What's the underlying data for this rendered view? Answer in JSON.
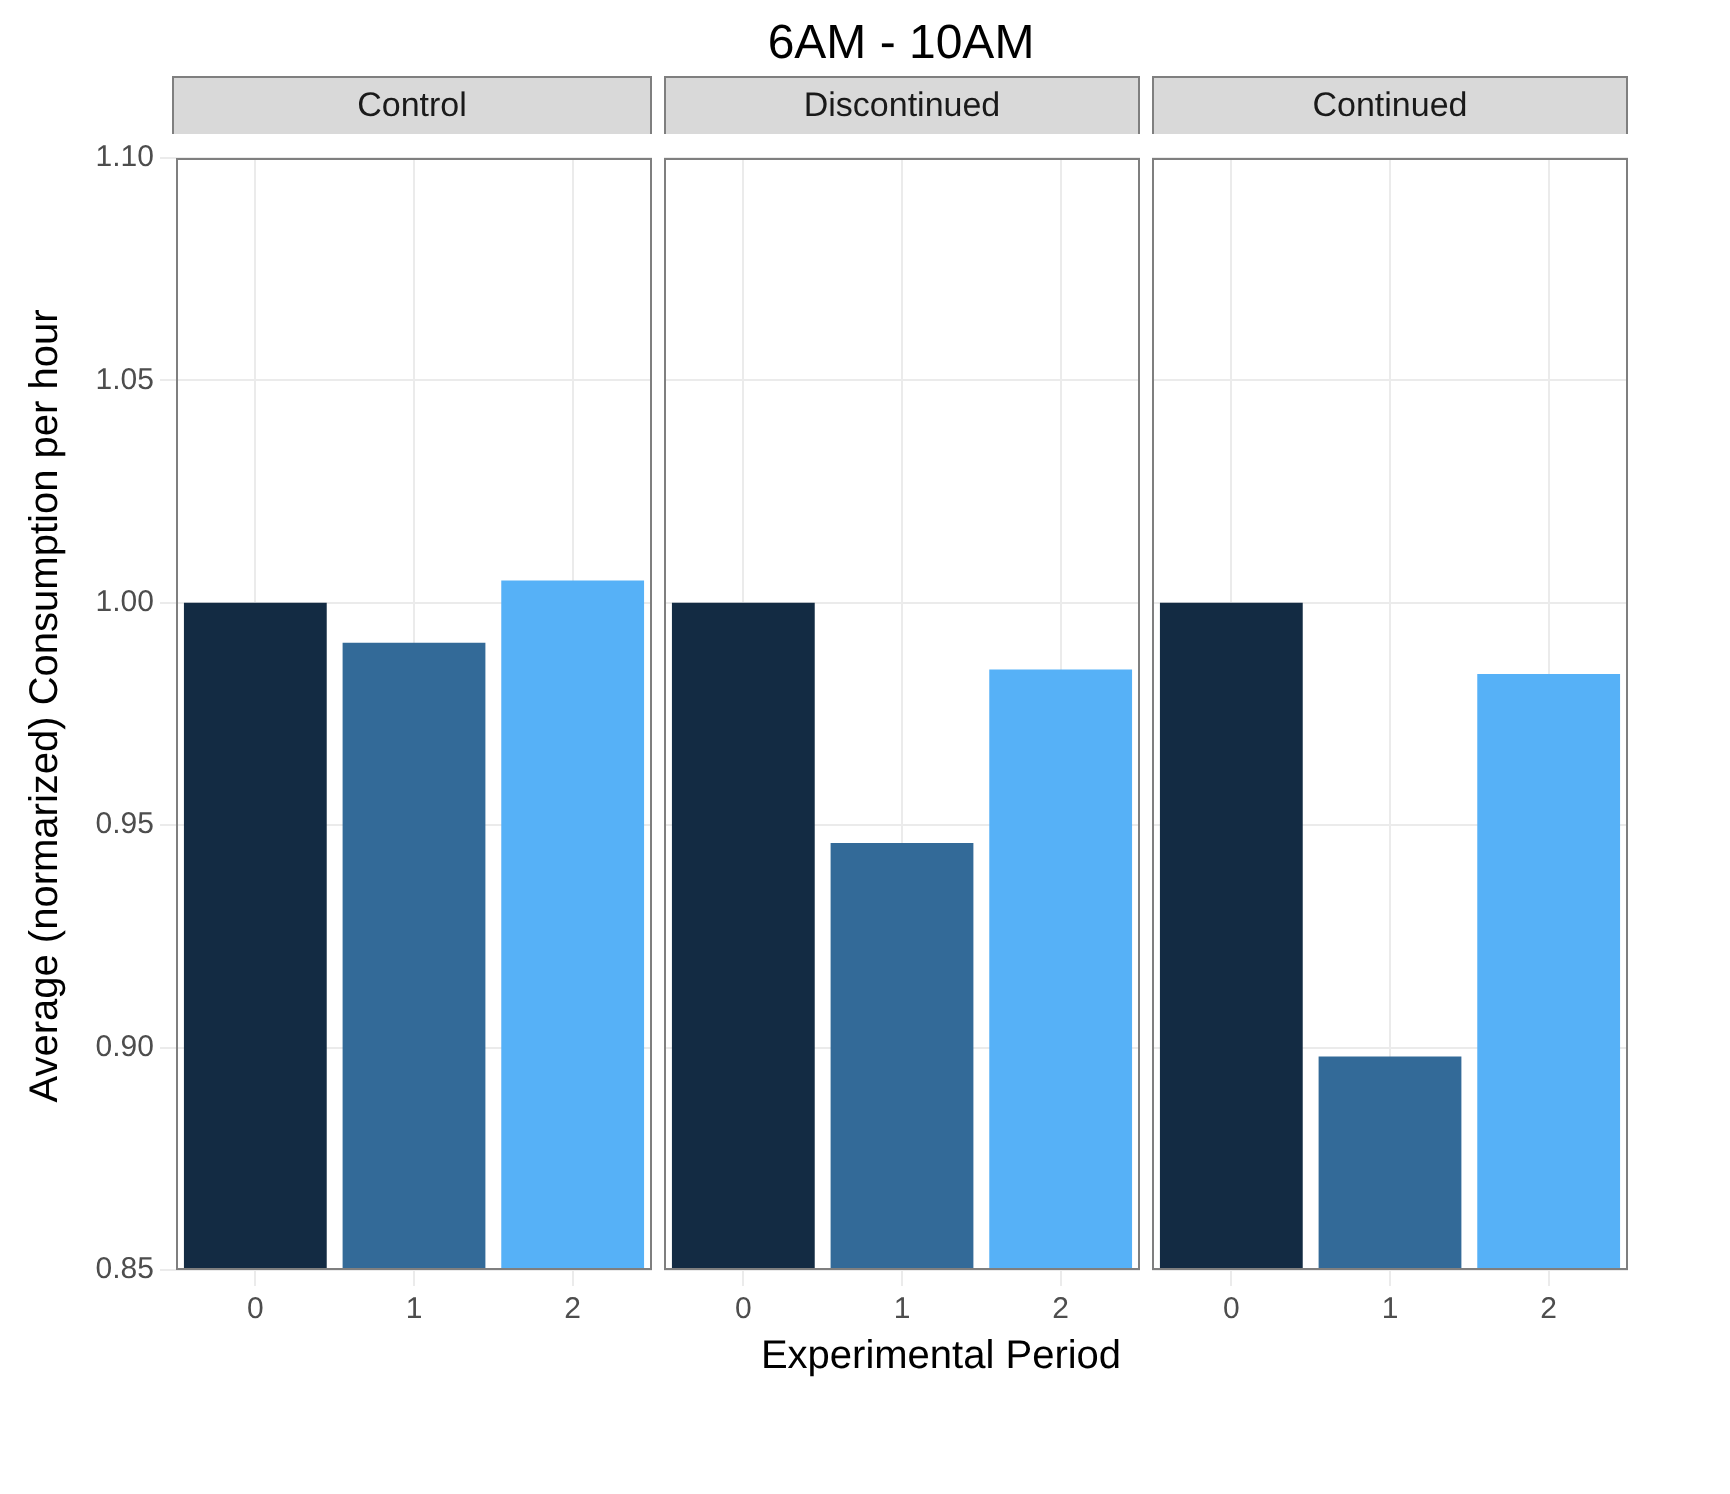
{
  "chart_data": [
    {
      "type": "bar",
      "subtitle": "Control",
      "ylabel": "Average (normarized) Consumption per hour",
      "categories": [
        "0",
        "1",
        "2"
      ],
      "values": [
        1.0,
        0.991,
        1.005
      ],
      "colors": [
        "#132b43",
        "#336a98",
        "#56b1f7"
      ],
      "ylim": [
        0.85,
        1.1
      ],
      "yticks": [
        {
          "value": 0.85,
          "label": "0.85"
        },
        {
          "value": 0.9,
          "label": "0.90"
        },
        {
          "value": 0.95,
          "label": "0.95"
        },
        {
          "value": 1.0,
          "label": "1.00"
        },
        {
          "value": 1.05,
          "label": "1.05"
        },
        {
          "value": 1.1,
          "label": "1.10"
        }
      ],
      "grid": true
    },
    {
      "type": "bar",
      "title": "6AM - 10AM",
      "subtitle": "Discontinued",
      "xlabel": "Experimental Period",
      "categories": [
        "0",
        "1",
        "2"
      ],
      "values": [
        1.0,
        0.946,
        0.985
      ],
      "colors": [
        "#132b43",
        "#336a98",
        "#56b1f7"
      ],
      "ylim": [
        0.85,
        1.1
      ],
      "yticks": [
        0.85,
        0.9,
        0.95,
        1.0,
        1.05,
        1.1
      ],
      "grid": true,
      "tick_labels": "x"
    },
    {
      "type": "bar",
      "subtitle": "Continued",
      "categories": [
        "0",
        "1",
        "2"
      ],
      "values": [
        1.0,
        0.898,
        0.984
      ],
      "colors": [
        "#132b43",
        "#336a98",
        "#56b1f7"
      ],
      "ylim": [
        0.85,
        1.1
      ],
      "yticks": [
        0.85,
        0.9,
        0.95,
        1.0,
        1.05,
        1.1
      ],
      "grid": true,
      "tick_labels": "x"
    }
  ]
}
